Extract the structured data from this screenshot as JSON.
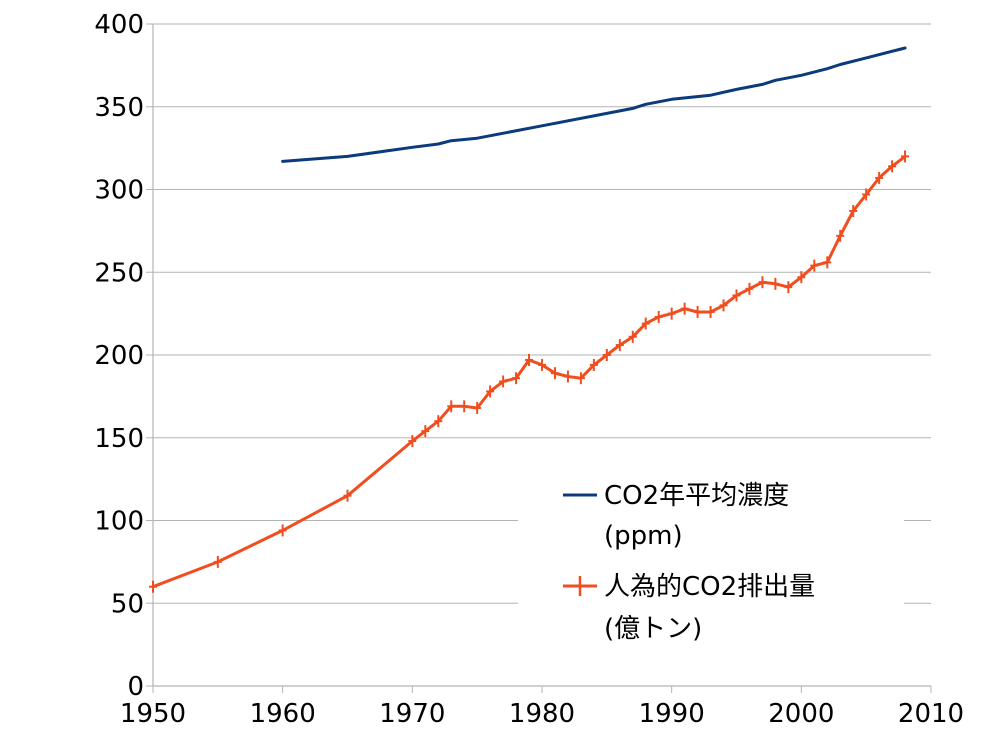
{
  "chart_data": {
    "type": "line",
    "title": "",
    "xlabel": "",
    "ylabel": "",
    "xlim": [
      1950,
      2010
    ],
    "ylim": [
      0,
      400
    ],
    "x_ticks": [
      "1950",
      "1960",
      "1970",
      "1980",
      "1990",
      "2000",
      "2010"
    ],
    "y_ticks": [
      "0",
      "50",
      "100",
      "150",
      "200",
      "250",
      "300",
      "350",
      "400"
    ],
    "grid": "horizontal",
    "legend_placement": "lower-right",
    "series": [
      {
        "name": "CO2年平均濃度",
        "name_line2": "(ppm)",
        "color": "#0b3b7c",
        "marker": "none",
        "x": [
          1960,
          1965,
          1970,
          1972,
          1973,
          1975,
          1980,
          1985,
          1987,
          1988,
          1990,
          1993,
          1995,
          1997,
          1998,
          2000,
          2002,
          2003,
          2005,
          2008
        ],
        "y": [
          317,
          320,
          325.5,
          327.5,
          329.5,
          331,
          338.5,
          346,
          349,
          351.5,
          354.5,
          357,
          360.5,
          363.5,
          366,
          369,
          373,
          375.5,
          379.5,
          385.5
        ]
      },
      {
        "name": "人為的CO2排出量",
        "name_line2": "(億トン)",
        "color": "#f04e1f",
        "marker": "plus",
        "x": [
          1950,
          1955,
          1960,
          1965,
          1970,
          1971,
          1972,
          1973,
          1974,
          1975,
          1976,
          1977,
          1978,
          1979,
          1980,
          1981,
          1982,
          1983,
          1984,
          1985,
          1986,
          1987,
          1988,
          1989,
          1990,
          1991,
          1992,
          1993,
          1994,
          1995,
          1996,
          1997,
          1998,
          1999,
          2000,
          2001,
          2002,
          2003,
          2004,
          2005,
          2006,
          2007,
          2008
        ],
        "y": [
          60,
          75,
          94,
          115,
          148,
          154,
          160,
          169,
          169,
          168,
          178,
          184,
          186,
          197,
          194,
          189,
          187,
          186,
          194,
          200,
          206,
          211,
          219,
          223,
          225,
          228,
          226,
          226,
          230,
          236,
          240,
          244,
          243,
          241,
          247,
          254,
          256,
          272,
          287,
          297,
          307,
          314,
          320
        ]
      }
    ]
  }
}
